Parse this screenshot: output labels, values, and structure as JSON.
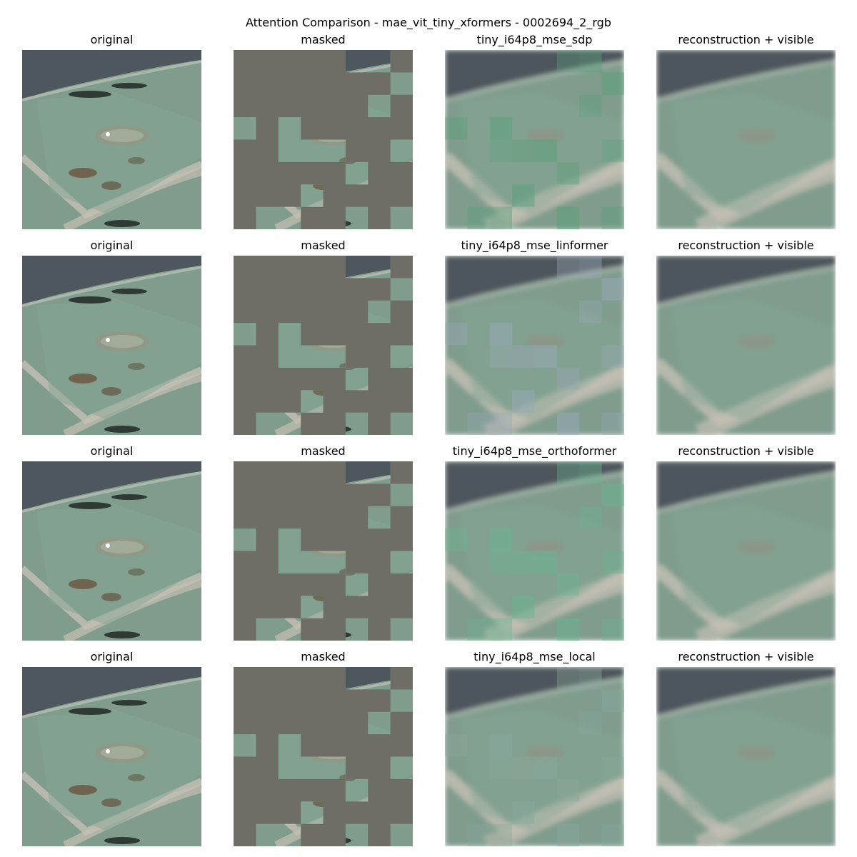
{
  "figure_title": "Attention Comparison - mae_vit_tiny_xformers - 0002694_2_rgb",
  "rows": [
    {
      "panels": [
        {
          "title": "original",
          "kind": "original"
        },
        {
          "title": "masked",
          "kind": "masked"
        },
        {
          "title": "tiny_i64p8_mse_sdp",
          "kind": "recon",
          "tint": "#5aa07a"
        },
        {
          "title": "reconstruction + visible",
          "kind": "combined"
        }
      ]
    },
    {
      "panels": [
        {
          "title": "original",
          "kind": "original"
        },
        {
          "title": "masked",
          "kind": "masked"
        },
        {
          "title": "tiny_i64p8_mse_linformer",
          "kind": "recon",
          "tint": "#9aa8b8"
        },
        {
          "title": "reconstruction + visible",
          "kind": "combined"
        }
      ]
    },
    {
      "panels": [
        {
          "title": "original",
          "kind": "original"
        },
        {
          "title": "masked",
          "kind": "masked"
        },
        {
          "title": "tiny_i64p8_mse_orthoformer",
          "kind": "recon",
          "tint": "#6ab492"
        },
        {
          "title": "reconstruction + visible",
          "kind": "combined"
        }
      ]
    },
    {
      "panels": [
        {
          "title": "original",
          "kind": "original"
        },
        {
          "title": "masked",
          "kind": "masked"
        },
        {
          "title": "tiny_i64p8_mse_local",
          "kind": "recon",
          "tint": "#8aa89a"
        },
        {
          "title": "reconstruction + visible",
          "kind": "combined"
        }
      ]
    }
  ],
  "colors": {
    "mask_gray": "#6e6d66",
    "field_green": "#7f9c8c",
    "water_dark": "#4e575d",
    "road_light": "#c4c0b4"
  }
}
